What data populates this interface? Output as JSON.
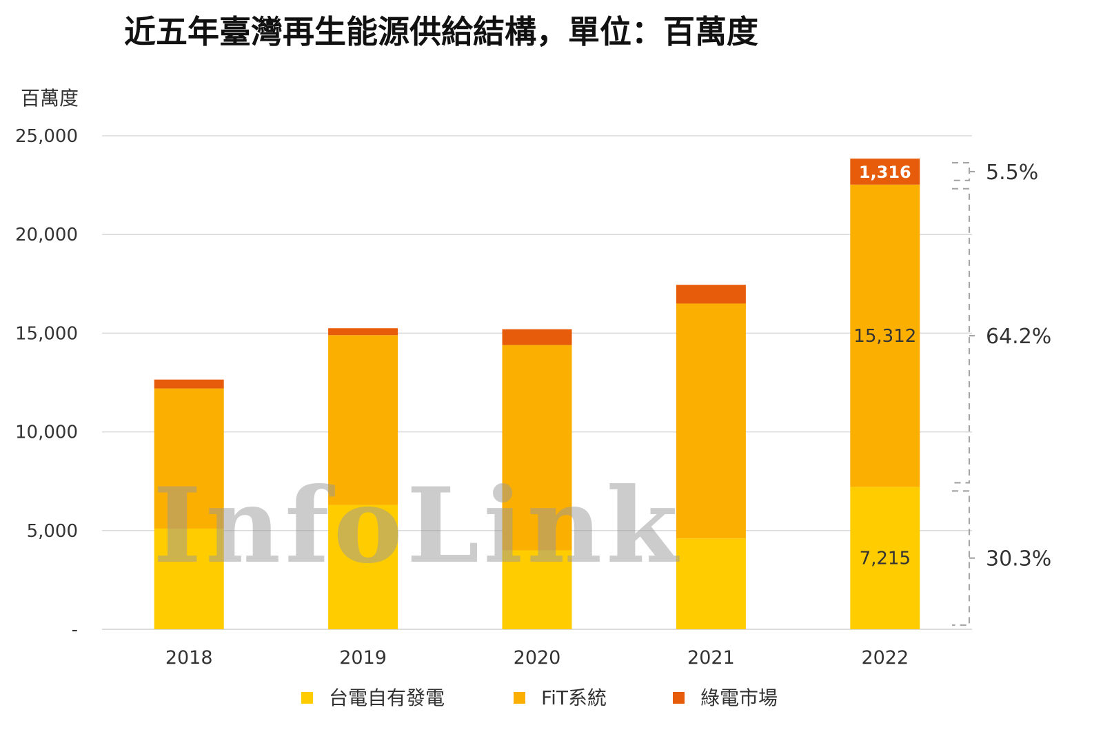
{
  "chart_data": {
    "type": "bar",
    "stacked": true,
    "title": "近五年臺灣再生能源供給結構，單位：百萬度",
    "ylabel": "百萬度",
    "ylim": [
      0,
      25000
    ],
    "yticks": [
      {
        "value": 0,
        "label": "-"
      },
      {
        "value": 5000,
        "label": "5,000"
      },
      {
        "value": 10000,
        "label": "10,000"
      },
      {
        "value": 15000,
        "label": "15,000"
      },
      {
        "value": 20000,
        "label": "20,000"
      },
      {
        "value": 25000,
        "label": "25,000"
      }
    ],
    "grid": true,
    "categories": [
      "2018",
      "2019",
      "2020",
      "2021",
      "2022"
    ],
    "series": [
      {
        "name": "台電自有發電",
        "color": "#FFCC00",
        "values": [
          5100,
          6300,
          4000,
          4600,
          7215
        ]
      },
      {
        "name": "FiT系統",
        "color": "#FBAF00",
        "values": [
          7100,
          8600,
          10400,
          11900,
          15312
        ]
      },
      {
        "name": "綠電市場",
        "color": "#E65C0A",
        "values": [
          450,
          350,
          800,
          950,
          1316
        ]
      }
    ],
    "data_labels": [
      {
        "category": "2022",
        "series": "台電自有發電",
        "text": "7,215"
      },
      {
        "category": "2022",
        "series": "FiT系統",
        "text": "15,312"
      },
      {
        "category": "2022",
        "series": "綠電市場",
        "text": "1,316"
      }
    ],
    "share_annotations": [
      {
        "series": "綠電市場",
        "text": "5.5%"
      },
      {
        "series": "FiT系統",
        "text": "64.2%"
      },
      {
        "series": "台電自有發電",
        "text": "30.3%"
      }
    ],
    "legend_position": "bottom-center",
    "watermark": "InfoLink"
  }
}
